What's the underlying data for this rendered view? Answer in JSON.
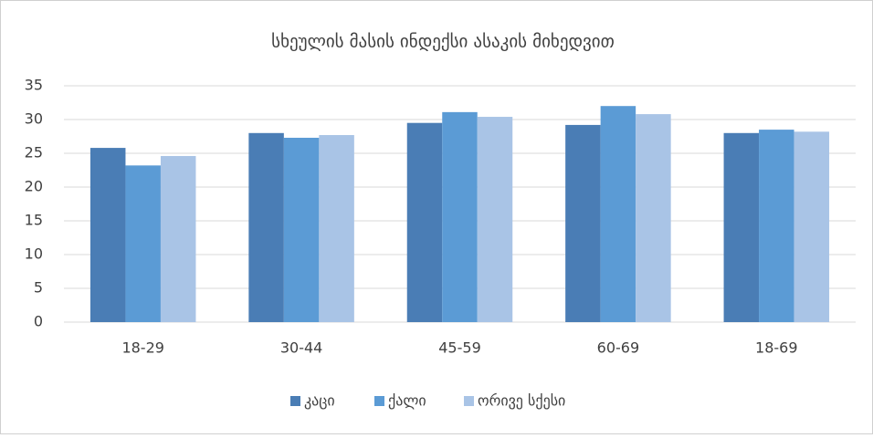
{
  "chart_data": {
    "type": "bar",
    "title": "სხეულის მასის ინდექსი ასაკის მიხედვით",
    "categories": [
      "18-29",
      "30-44",
      "45-59",
      "60-69",
      "18-69"
    ],
    "series": [
      {
        "name": "კაცი",
        "color": "#4a7db5",
        "values": [
          25.8,
          28.0,
          29.5,
          29.2,
          28.0
        ]
      },
      {
        "name": "ქალი",
        "color": "#5b9bd5",
        "values": [
          23.2,
          27.3,
          31.1,
          32.0,
          28.5
        ]
      },
      {
        "name": "ორივე სქესი",
        "color": "#a9c4e6",
        "values": [
          24.6,
          27.7,
          30.4,
          30.8,
          28.2
        ]
      }
    ],
    "ylim": [
      0,
      35
    ],
    "yticks": [
      0,
      5,
      10,
      15,
      20,
      25,
      30,
      35
    ],
    "grid": true,
    "legend": "bottom"
  }
}
